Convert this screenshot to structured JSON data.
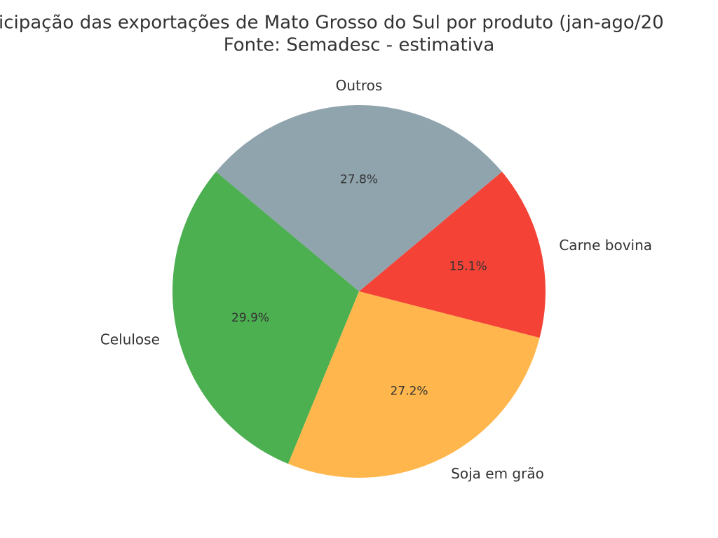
{
  "chart_data": {
    "type": "pie",
    "title": "icipação das exportações de Mato Grosso do Sul por produto (jan-ago/20",
    "subtitle": "Fonte: Semadesc - estimativa",
    "categories": [
      "Carne bovina",
      "Outros",
      "Celulose",
      "Soja em grão"
    ],
    "values": [
      15.1,
      27.8,
      29.9,
      27.2
    ],
    "value_labels": [
      "15.1%",
      "27.8%",
      "29.9%",
      "27.2%"
    ],
    "colors": [
      "#f44336",
      "#90a4ae",
      "#4caf50",
      "#ffb74d"
    ]
  }
}
